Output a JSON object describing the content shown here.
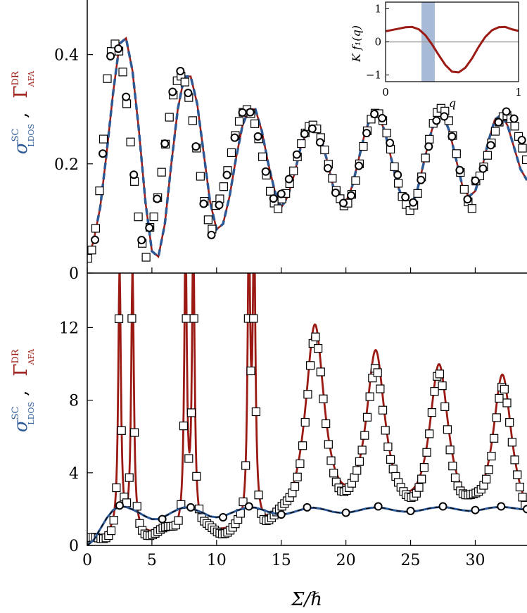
{
  "colors": {
    "red": "#9b1a14",
    "blue": "#2d5a96",
    "shade": "#a8bbd6",
    "grey": "#a0a0a0"
  },
  "labels": {
    "xlabel": "Σ/ℏ",
    "sigma_symbol": "σ",
    "sigma_sup": "SC",
    "sigma_sub": "LDOS",
    "gamma_symbol": "Γ",
    "gamma_sup": "DR",
    "gamma_sub": "AFA",
    "comma": ",",
    "inset_ylabel": "K f₁(q)",
    "inset_xlabel": "q"
  },
  "chart_data": [
    {
      "type": "line",
      "panel": "top",
      "xlim": [
        0,
        34
      ],
      "ylim": [
        0,
        0.5
      ],
      "xticks": [
        0,
        5,
        10,
        15,
        20,
        25,
        30
      ],
      "yticks": [
        0,
        0.2,
        0.4
      ],
      "ytick_labels": [
        "0",
        "0.2",
        "0.4"
      ],
      "show_x_tick_labels": false,
      "oscillation": {
        "offset": 0.02,
        "period": 5.05,
        "phase": -0.36,
        "peaks": [
          0.425,
          0.366,
          0.301,
          0.268,
          0.288,
          0.297,
          0.288
        ],
        "troughs": [
          0.02,
          0.075,
          0.118,
          0.135,
          0.128,
          0.12,
          0.17
        ]
      },
      "series": [
        {
          "style": "red-solid",
          "x": [
            0,
            0.5,
            1,
            1.5,
            2,
            2.5,
            3,
            3.5,
            4,
            4.5,
            5,
            5.5,
            6,
            6.5,
            7,
            7.5,
            8,
            8.5,
            9,
            9.5,
            10,
            10.5,
            11,
            11.5,
            12,
            12.5,
            13,
            13.5,
            14,
            14.5,
            15,
            15.5,
            16,
            16.5,
            17,
            17.5,
            18,
            18.5,
            19,
            19.5,
            20,
            20.5,
            21,
            21.5,
            22,
            22.5,
            23,
            23.5,
            24,
            24.5,
            25,
            25.5,
            26,
            26.5,
            27,
            27.5,
            28,
            28.5,
            29,
            29.5,
            30,
            30.5,
            31,
            31.5,
            32,
            32.5,
            33,
            33.5,
            34
          ],
          "y": [
            0.02,
            0.06,
            0.12,
            0.22,
            0.33,
            0.42,
            0.43,
            0.37,
            0.26,
            0.13,
            0.04,
            0.03,
            0.09,
            0.2,
            0.3,
            0.36,
            0.36,
            0.31,
            0.22,
            0.13,
            0.08,
            0.09,
            0.14,
            0.21,
            0.27,
            0.3,
            0.3,
            0.26,
            0.2,
            0.15,
            0.12,
            0.14,
            0.18,
            0.23,
            0.26,
            0.27,
            0.25,
            0.21,
            0.16,
            0.13,
            0.13,
            0.16,
            0.21,
            0.26,
            0.29,
            0.29,
            0.26,
            0.21,
            0.16,
            0.13,
            0.12,
            0.15,
            0.2,
            0.25,
            0.29,
            0.29,
            0.26,
            0.21,
            0.16,
            0.14,
            0.15,
            0.19,
            0.24,
            0.28,
            0.29,
            0.27,
            0.23,
            0.19,
            0.17
          ]
        },
        {
          "style": "blue-dashed",
          "x": [
            0,
            0.5,
            1,
            1.5,
            2,
            2.5,
            3,
            3.5,
            4,
            4.5,
            5,
            5.5,
            6,
            6.5,
            7,
            7.5,
            8,
            8.5,
            9,
            9.5,
            10,
            10.5,
            11,
            11.5,
            12,
            12.5,
            13,
            13.5,
            14,
            14.5,
            15,
            15.5,
            16,
            16.5,
            17,
            17.5,
            18,
            18.5,
            19,
            19.5,
            20,
            20.5,
            21,
            21.5,
            22,
            22.5,
            23,
            23.5,
            24,
            24.5,
            25,
            25.5,
            26,
            26.5,
            27,
            27.5,
            28,
            28.5,
            29,
            29.5,
            30,
            30.5,
            31,
            31.5,
            32,
            32.5,
            33,
            33.5,
            34
          ],
          "y": [
            0.02,
            0.06,
            0.12,
            0.22,
            0.33,
            0.42,
            0.43,
            0.37,
            0.26,
            0.13,
            0.04,
            0.03,
            0.09,
            0.2,
            0.3,
            0.36,
            0.36,
            0.31,
            0.22,
            0.13,
            0.08,
            0.09,
            0.14,
            0.21,
            0.27,
            0.3,
            0.3,
            0.26,
            0.2,
            0.15,
            0.12,
            0.14,
            0.18,
            0.23,
            0.26,
            0.27,
            0.25,
            0.21,
            0.16,
            0.13,
            0.13,
            0.16,
            0.21,
            0.26,
            0.29,
            0.29,
            0.26,
            0.21,
            0.16,
            0.13,
            0.12,
            0.15,
            0.2,
            0.25,
            0.29,
            0.29,
            0.26,
            0.21,
            0.16,
            0.14,
            0.15,
            0.19,
            0.24,
            0.28,
            0.29,
            0.27,
            0.23,
            0.19,
            0.17
          ]
        },
        {
          "style": "squares",
          "source": "oscillation",
          "x_start": 0.05,
          "x_step": 0.3,
          "jitter": 0.006
        },
        {
          "style": "circles",
          "source": "oscillation",
          "x_start": 0.6,
          "x_step": 0.6,
          "jitter": 0.008
        }
      ],
      "inset": {
        "xlim": [
          0,
          1
        ],
        "ylim": [
          -1.2,
          1.2
        ],
        "xticks": [
          0,
          1
        ],
        "yticks": [
          -1,
          0,
          1
        ],
        "ytick_labels": [
          "−1",
          "0",
          "1"
        ],
        "shaded_x": [
          0.27,
          0.37
        ],
        "zero_line": true,
        "curve": {
          "x": [
            0,
            0.05,
            0.1,
            0.15,
            0.2,
            0.25,
            0.3,
            0.35,
            0.4,
            0.45,
            0.5,
            0.55,
            0.6,
            0.65,
            0.7,
            0.75,
            0.8,
            0.85,
            0.9,
            0.95,
            1
          ],
          "y": [
            0.32,
            0.36,
            0.4,
            0.44,
            0.45,
            0.38,
            0.2,
            -0.08,
            -0.4,
            -0.7,
            -0.9,
            -0.92,
            -0.78,
            -0.5,
            -0.15,
            0.15,
            0.35,
            0.44,
            0.45,
            0.38,
            0.33
          ]
        }
      }
    },
    {
      "type": "line",
      "panel": "bottom",
      "xlim": [
        0,
        34
      ],
      "ylim": [
        0,
        15
      ],
      "xticks": [
        0,
        5,
        10,
        15,
        20,
        25,
        30
      ],
      "xtick_labels": [
        "0",
        "5",
        "10",
        "15",
        "20",
        "25",
        "30"
      ],
      "yticks": [
        0,
        4,
        8,
        12
      ],
      "ytick_labels": [
        "0",
        "4",
        "8",
        "12"
      ],
      "lorentz": {
        "base": 0.5,
        "width": 0.9,
        "peaks": [
          [
            2.5,
            14.8
          ],
          [
            3.5,
            14.8
          ],
          [
            7.6,
            16
          ],
          [
            8.2,
            16
          ],
          [
            12.5,
            16
          ],
          [
            12.9,
            16
          ],
          [
            17.6,
            11.2
          ],
          [
            22.3,
            9.5
          ],
          [
            27.2,
            8.8
          ],
          [
            32.1,
            8.5
          ]
        ]
      },
      "series": [
        {
          "style": "red-solid",
          "source": "lorentz",
          "x_start": 0,
          "x_step": 0.05
        },
        {
          "style": "squares",
          "source": "lorentz",
          "x_start": 0.05,
          "x_step": 0.2,
          "scale": 0.93,
          "jitter": 0.25
        },
        {
          "style": "blue-solid",
          "x": [
            0,
            0.5,
            1,
            1.5,
            2,
            2.5,
            3,
            3.5,
            4,
            4.5,
            5,
            5.5,
            6,
            6.5,
            7,
            7.5,
            8,
            8.5,
            9,
            9.5,
            10,
            10.5,
            11,
            11.5,
            12,
            12.5,
            13,
            13.5,
            14,
            14.5,
            15,
            15.5,
            16,
            16.5,
            17,
            17.5,
            18,
            18.5,
            19,
            19.5,
            20,
            20.5,
            21,
            21.5,
            22,
            22.5,
            23,
            23.5,
            24,
            24.5,
            25,
            25.5,
            26,
            26.5,
            27,
            27.5,
            28,
            28.5,
            29,
            29.5,
            30,
            30.5,
            31,
            31.5,
            32,
            32.5,
            33,
            33.5,
            34
          ],
          "y": [
            0,
            0.3,
            0.9,
            1.5,
            1.95,
            2.15,
            2.12,
            1.98,
            1.8,
            1.6,
            1.45,
            1.45,
            1.6,
            1.8,
            1.98,
            2.1,
            2.05,
            1.92,
            1.78,
            1.6,
            1.55,
            1.6,
            1.75,
            1.9,
            2.02,
            2.1,
            2.08,
            1.98,
            1.85,
            1.75,
            1.7,
            1.75,
            1.85,
            1.96,
            2.05,
            2.08,
            2.03,
            1.95,
            1.85,
            1.8,
            1.8,
            1.85,
            1.93,
            2.02,
            2.08,
            2.1,
            2.05,
            1.97,
            1.9,
            1.86,
            1.86,
            1.9,
            1.97,
            2.05,
            2.1,
            2.12,
            2.08,
            2.0,
            1.94,
            1.9,
            1.92,
            1.97,
            2.05,
            2.1,
            2.13,
            2.1,
            2.05,
            2.0,
            1.98
          ]
        },
        {
          "style": "black-dashed",
          "x": [
            0,
            0.5,
            1,
            1.5,
            2,
            2.5,
            3,
            3.5,
            4,
            4.5,
            5,
            5.5,
            6,
            6.5,
            7,
            7.5,
            8,
            8.5,
            9,
            9.5,
            10,
            10.5,
            11,
            11.5,
            12,
            12.5,
            13,
            13.5,
            14,
            14.5,
            15,
            15.5,
            16,
            16.5,
            17,
            17.5,
            18,
            18.5,
            19,
            19.5,
            20,
            20.5,
            21,
            21.5,
            22,
            22.5,
            23,
            23.5,
            24,
            24.5,
            25,
            25.5,
            26,
            26.5,
            27,
            27.5,
            28,
            28.5,
            29,
            29.5,
            30,
            30.5,
            31,
            31.5,
            32,
            32.5,
            33,
            33.5,
            34
          ],
          "y": [
            0,
            0.3,
            0.9,
            1.5,
            1.95,
            2.15,
            2.12,
            1.98,
            1.8,
            1.6,
            1.45,
            1.45,
            1.6,
            1.8,
            1.98,
            2.1,
            2.05,
            1.92,
            1.78,
            1.6,
            1.55,
            1.6,
            1.75,
            1.9,
            2.02,
            2.1,
            2.08,
            1.98,
            1.85,
            1.75,
            1.7,
            1.75,
            1.85,
            1.96,
            2.05,
            2.08,
            2.03,
            1.95,
            1.85,
            1.8,
            1.8,
            1.85,
            1.93,
            2.02,
            2.08,
            2.1,
            2.05,
            1.97,
            1.9,
            1.86,
            1.86,
            1.9,
            1.97,
            2.05,
            2.1,
            2.12,
            2.08,
            2.0,
            1.94,
            1.9,
            1.92,
            1.97,
            2.05,
            2.1,
            2.13,
            2.1,
            2.05,
            2.0,
            1.98
          ]
        },
        {
          "style": "circles",
          "x": [
            2.5,
            5.8,
            8,
            10.5,
            12.5,
            15,
            17,
            20,
            22.5,
            25,
            27.5,
            30,
            32,
            34
          ],
          "y": [
            2.2,
            1.45,
            2.1,
            1.55,
            2.15,
            1.7,
            2.1,
            1.8,
            2.15,
            1.9,
            2.15,
            1.95,
            2.15,
            2.0
          ]
        }
      ]
    }
  ]
}
